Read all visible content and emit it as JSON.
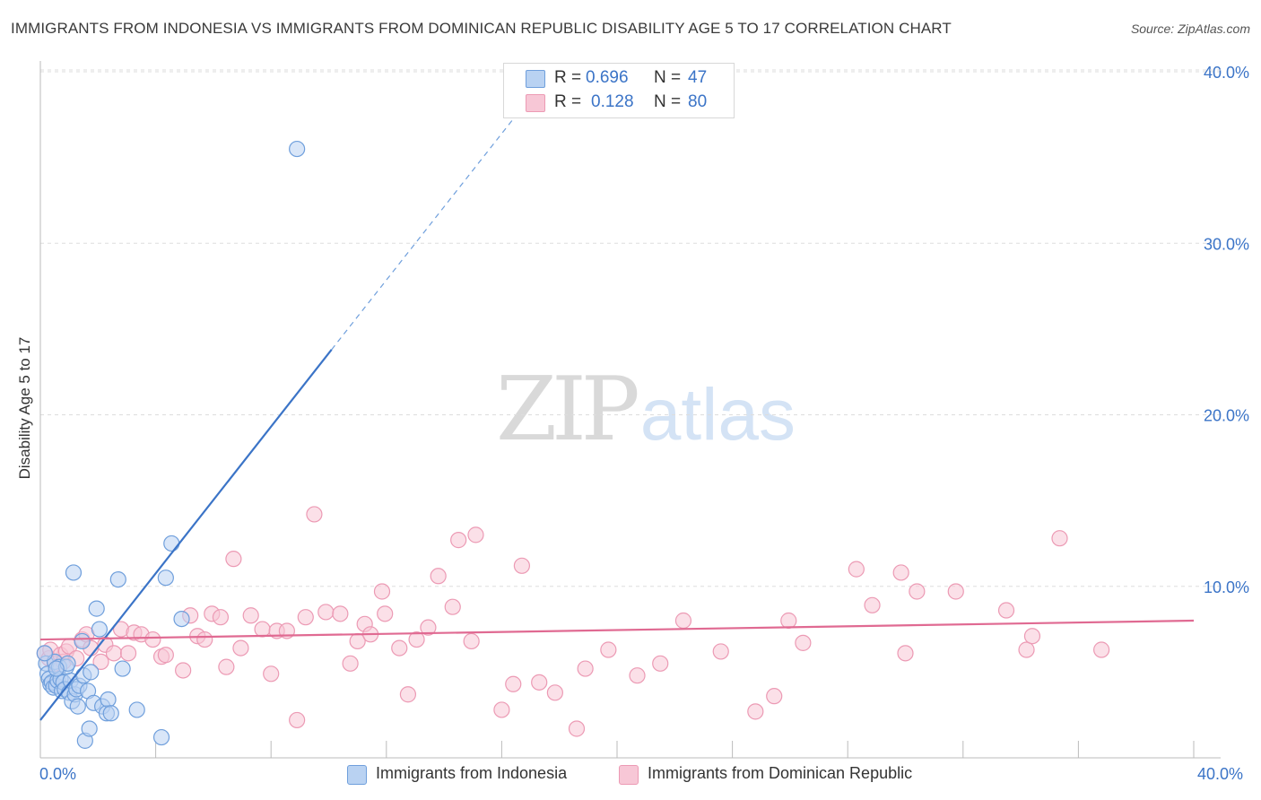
{
  "title": "IMMIGRANTS FROM INDONESIA VS IMMIGRANTS FROM DOMINICAN REPUBLIC DISABILITY AGE 5 TO 17 CORRELATION CHART",
  "source": "Source: ZipAtlas.com",
  "watermark": {
    "zip": "ZIP",
    "atlas": "atlas"
  },
  "legend": {
    "series1": {
      "r_label": "R =",
      "r_value": "0.696",
      "n_label": "N =",
      "n_value": "47"
    },
    "series2": {
      "r_label": "R =",
      "r_value": "0.128",
      "n_label": "N =",
      "n_value": "80"
    }
  },
  "colors": {
    "blue": "#3b74c7",
    "blue_fill": "#b9d2f2",
    "blue_stroke": "#6f9fdc",
    "pink": "#e06a92",
    "pink_fill": "#f7c7d6",
    "pink_stroke": "#ec9ab4",
    "grid": "#dddddd"
  },
  "chart_data": {
    "type": "scatter",
    "title": "IMMIGRANTS FROM INDONESIA VS IMMIGRANTS FROM DOMINICAN REPUBLIC DISABILITY AGE 5 TO 17 CORRELATION CHART",
    "xlabel": "",
    "ylabel": "Disability Age 5 to 17",
    "xlim": [
      0,
      40
    ],
    "ylim": [
      0,
      40
    ],
    "x_tick_labels": [
      "0.0%",
      "40.0%"
    ],
    "y_ticks": [
      10,
      20,
      30,
      40
    ],
    "y_tick_labels": [
      "10.0%",
      "20.0%",
      "30.0%",
      "40.0%"
    ],
    "grid": true,
    "series": [
      {
        "name": "Immigrants from Indonesia",
        "r": 0.696,
        "n": 47,
        "trend": {
          "x_start": 0,
          "y_start": 2.2,
          "x_solid_end": 10.1,
          "y_solid_end": 23.8,
          "x_dashed_end": 16.8,
          "y_dashed_end": 38.1
        },
        "points": [
          [
            0.2,
            5.5
          ],
          [
            0.25,
            4.9
          ],
          [
            0.3,
            4.6
          ],
          [
            0.35,
            4.3
          ],
          [
            0.4,
            4.4
          ],
          [
            0.45,
            4.1
          ],
          [
            0.5,
            5.6
          ],
          [
            0.55,
            4.2
          ],
          [
            0.6,
            4.5
          ],
          [
            0.65,
            5.3
          ],
          [
            0.7,
            4.6
          ],
          [
            0.75,
            3.9
          ],
          [
            0.8,
            4.4
          ],
          [
            0.85,
            4.0
          ],
          [
            0.9,
            5.3
          ],
          [
            0.95,
            5.5
          ],
          [
            1.0,
            3.8
          ],
          [
            1.05,
            4.5
          ],
          [
            1.1,
            3.3
          ],
          [
            1.15,
            10.8
          ],
          [
            1.2,
            3.7
          ],
          [
            1.25,
            4.0
          ],
          [
            1.3,
            3.0
          ],
          [
            1.35,
            4.2
          ],
          [
            1.45,
            6.8
          ],
          [
            1.5,
            4.8
          ],
          [
            1.55,
            1.0
          ],
          [
            1.65,
            3.9
          ],
          [
            1.7,
            1.7
          ],
          [
            1.75,
            5.0
          ],
          [
            1.85,
            3.2
          ],
          [
            1.95,
            8.7
          ],
          [
            2.05,
            7.5
          ],
          [
            2.15,
            3.0
          ],
          [
            2.3,
            2.6
          ],
          [
            2.35,
            3.4
          ],
          [
            2.45,
            2.6
          ],
          [
            2.7,
            10.4
          ],
          [
            2.85,
            5.2
          ],
          [
            3.35,
            2.8
          ],
          [
            4.2,
            1.2
          ],
          [
            4.35,
            10.5
          ],
          [
            4.55,
            12.5
          ],
          [
            4.9,
            8.1
          ],
          [
            8.9,
            35.5
          ],
          [
            0.15,
            6.1
          ],
          [
            0.55,
            5.2
          ]
        ]
      },
      {
        "name": "Immigrants from Dominican Republic",
        "r": 0.128,
        "n": 80,
        "trend": {
          "x_start": 0,
          "y_start": 6.9,
          "x_end": 40,
          "y_end": 8.0
        },
        "points": [
          [
            0.15,
            6.1
          ],
          [
            0.3,
            5.8
          ],
          [
            0.35,
            6.3
          ],
          [
            0.5,
            5.5
          ],
          [
            0.7,
            6.0
          ],
          [
            0.8,
            5.6
          ],
          [
            0.9,
            6.2
          ],
          [
            1.0,
            6.5
          ],
          [
            1.25,
            5.8
          ],
          [
            1.45,
            6.9
          ],
          [
            1.6,
            7.2
          ],
          [
            1.75,
            6.4
          ],
          [
            2.1,
            5.6
          ],
          [
            2.25,
            6.6
          ],
          [
            2.55,
            6.1
          ],
          [
            2.8,
            7.5
          ],
          [
            3.05,
            6.1
          ],
          [
            3.25,
            7.3
          ],
          [
            3.5,
            7.2
          ],
          [
            3.9,
            6.9
          ],
          [
            4.2,
            5.9
          ],
          [
            4.35,
            6.0
          ],
          [
            4.95,
            5.1
          ],
          [
            5.2,
            8.3
          ],
          [
            5.45,
            7.1
          ],
          [
            5.7,
            6.9
          ],
          [
            5.95,
            8.4
          ],
          [
            6.25,
            8.2
          ],
          [
            6.45,
            5.3
          ],
          [
            6.7,
            11.6
          ],
          [
            6.95,
            6.4
          ],
          [
            7.3,
            8.3
          ],
          [
            7.7,
            7.5
          ],
          [
            8.0,
            4.9
          ],
          [
            8.2,
            7.4
          ],
          [
            8.55,
            7.4
          ],
          [
            8.9,
            2.2
          ],
          [
            9.2,
            8.2
          ],
          [
            9.5,
            14.2
          ],
          [
            9.9,
            8.5
          ],
          [
            10.4,
            8.4
          ],
          [
            10.75,
            5.5
          ],
          [
            11.0,
            6.8
          ],
          [
            11.25,
            7.8
          ],
          [
            11.45,
            7.2
          ],
          [
            11.85,
            9.7
          ],
          [
            11.95,
            8.4
          ],
          [
            12.45,
            6.4
          ],
          [
            12.75,
            3.7
          ],
          [
            13.05,
            6.9
          ],
          [
            13.45,
            7.6
          ],
          [
            13.8,
            10.6
          ],
          [
            14.3,
            8.8
          ],
          [
            14.5,
            12.7
          ],
          [
            14.95,
            6.8
          ],
          [
            15.1,
            13.0
          ],
          [
            16.0,
            2.8
          ],
          [
            16.4,
            4.3
          ],
          [
            16.7,
            11.2
          ],
          [
            17.3,
            4.4
          ],
          [
            17.85,
            3.8
          ],
          [
            18.6,
            1.7
          ],
          [
            18.9,
            5.2
          ],
          [
            19.7,
            6.3
          ],
          [
            20.7,
            4.8
          ],
          [
            21.5,
            5.5
          ],
          [
            22.3,
            8.0
          ],
          [
            23.6,
            6.2
          ],
          [
            24.8,
            2.7
          ],
          [
            25.45,
            3.6
          ],
          [
            25.95,
            8.0
          ],
          [
            26.45,
            6.7
          ],
          [
            28.3,
            11.0
          ],
          [
            28.85,
            8.9
          ],
          [
            29.85,
            10.8
          ],
          [
            30.0,
            6.1
          ],
          [
            30.4,
            9.7
          ],
          [
            31.75,
            9.7
          ],
          [
            33.5,
            8.6
          ],
          [
            34.2,
            6.3
          ]
        ],
        "extra_points": [
          [
            34.4,
            7.1
          ],
          [
            35.35,
            12.8
          ],
          [
            36.8,
            6.3
          ]
        ]
      }
    ]
  }
}
